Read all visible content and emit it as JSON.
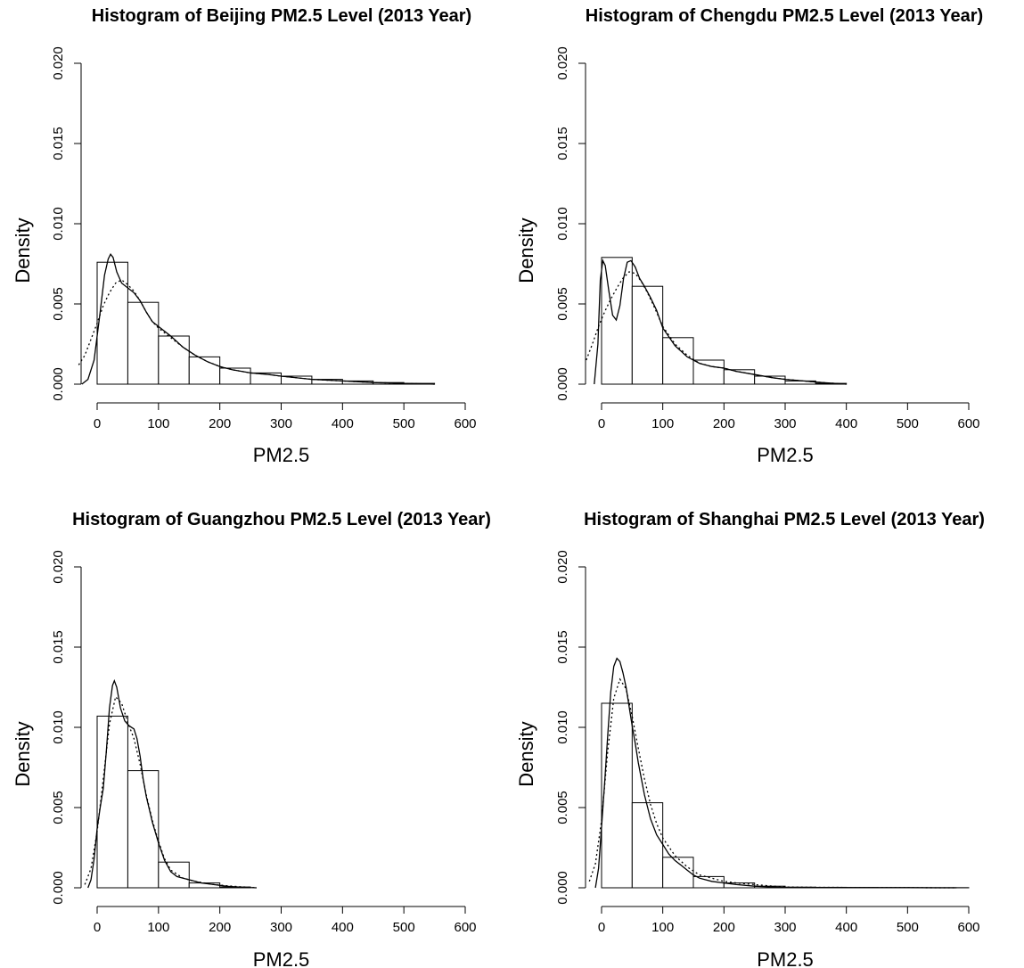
{
  "chart_data": [
    {
      "type": "bar",
      "title": "Histogram of Beijing PM2.5 Level (2013 Year)",
      "xlabel": "PM2.5",
      "ylabel": "Density",
      "xlim": [
        0,
        600
      ],
      "ylim": [
        0,
        0.02
      ],
      "x_ticks": [
        0,
        100,
        200,
        300,
        400,
        500,
        600
      ],
      "y_ticks": [
        0,
        0.005,
        0.01,
        0.015,
        0.02
      ],
      "x_tick_labels": [
        "0",
        "100",
        "200",
        "300",
        "400",
        "500",
        "600"
      ],
      "y_tick_labels": [
        "0.000",
        "0.005",
        "0.010",
        "0.015",
        "0.020"
      ],
      "bin_edges": [
        0,
        50,
        100,
        150,
        200,
        250,
        300,
        350,
        400,
        450,
        500,
        550
      ],
      "values": [
        0.0076,
        0.0051,
        0.003,
        0.0017,
        0.001,
        0.0007,
        0.0005,
        0.0003,
        0.0002,
        0.0001,
        5e-05
      ],
      "series": [
        {
          "style": "solid",
          "x": [
            -25,
            -15,
            -5,
            5,
            12,
            18,
            22,
            26,
            32,
            40,
            50,
            60,
            70,
            80,
            90,
            100,
            120,
            140,
            160,
            180,
            200,
            220,
            250,
            280,
            300,
            350,
            400,
            450,
            500,
            550
          ],
          "y": [
            0,
            0.0003,
            0.0015,
            0.0045,
            0.0068,
            0.0078,
            0.0081,
            0.0079,
            0.007,
            0.0063,
            0.006,
            0.0057,
            0.0052,
            0.0045,
            0.0039,
            0.0036,
            0.003,
            0.0023,
            0.0018,
            0.0014,
            0.0011,
            0.0009,
            0.0007,
            0.0006,
            0.0005,
            0.0003,
            0.0002,
            0.0001,
            5e-05,
            0
          ]
        },
        {
          "style": "dotted",
          "x": [
            -30,
            -20,
            -10,
            0,
            10,
            20,
            30,
            40,
            50,
            60,
            70,
            80,
            90,
            100,
            120,
            140,
            160,
            180,
            200,
            220,
            250,
            280,
            300,
            350,
            400,
            450,
            500,
            550
          ],
          "y": [
            0.0012,
            0.0018,
            0.0028,
            0.0038,
            0.0049,
            0.0057,
            0.0063,
            0.0065,
            0.0062,
            0.0058,
            0.0052,
            0.0045,
            0.0039,
            0.0035,
            0.0029,
            0.0023,
            0.0018,
            0.0014,
            0.0011,
            0.0009,
            0.0007,
            0.0006,
            0.0005,
            0.0003,
            0.0002,
            0.0001,
            5e-05,
            0
          ]
        }
      ]
    },
    {
      "type": "bar",
      "title": "Histogram of Chengdu PM2.5 Level (2013 Year)",
      "xlabel": "PM2.5",
      "ylabel": "Density",
      "xlim": [
        0,
        600
      ],
      "ylim": [
        0,
        0.02
      ],
      "x_ticks": [
        0,
        100,
        200,
        300,
        400,
        500,
        600
      ],
      "y_ticks": [
        0,
        0.005,
        0.01,
        0.015,
        0.02
      ],
      "x_tick_labels": [
        "0",
        "100",
        "200",
        "300",
        "400",
        "500",
        "600"
      ],
      "y_tick_labels": [
        "0.000",
        "0.005",
        "0.010",
        "0.015",
        "0.020"
      ],
      "bin_edges": [
        0,
        50,
        100,
        150,
        200,
        250,
        300,
        350,
        400
      ],
      "values": [
        0.0079,
        0.0061,
        0.0029,
        0.0015,
        0.0009,
        0.0005,
        0.0002,
        5e-05
      ],
      "series": [
        {
          "style": "solid",
          "x": [
            -12,
            -6,
            -2,
            2,
            6,
            12,
            18,
            24,
            30,
            36,
            42,
            48,
            55,
            62,
            70,
            80,
            90,
            100,
            120,
            140,
            160,
            180,
            200,
            220,
            250,
            280,
            300,
            330,
            360,
            400
          ],
          "y": [
            0,
            0.0025,
            0.0065,
            0.0077,
            0.0074,
            0.0058,
            0.0043,
            0.004,
            0.0049,
            0.0066,
            0.0076,
            0.0077,
            0.0073,
            0.0066,
            0.0061,
            0.0054,
            0.0046,
            0.0035,
            0.0024,
            0.0017,
            0.0013,
            0.0011,
            0.001,
            0.0008,
            0.0006,
            0.0004,
            0.0003,
            0.0002,
            0.0001,
            0
          ]
        },
        {
          "style": "dotted",
          "x": [
            -25,
            -15,
            -5,
            5,
            15,
            25,
            35,
            45,
            55,
            65,
            75,
            85,
            100,
            120,
            140,
            160,
            180,
            200,
            220,
            250,
            280,
            300,
            330,
            360,
            400
          ],
          "y": [
            0.0015,
            0.0025,
            0.0036,
            0.0045,
            0.0053,
            0.006,
            0.0066,
            0.007,
            0.0069,
            0.0064,
            0.0057,
            0.0049,
            0.0036,
            0.0025,
            0.0018,
            0.0013,
            0.0011,
            0.001,
            0.0008,
            0.0006,
            0.0004,
            0.0003,
            0.0002,
            0.0001,
            0
          ]
        }
      ]
    },
    {
      "type": "bar",
      "title": "Histogram of Guangzhou PM2.5 Level (2013 Year)",
      "xlabel": "PM2.5",
      "ylabel": "Density",
      "xlim": [
        0,
        600
      ],
      "ylim": [
        0,
        0.02
      ],
      "x_ticks": [
        0,
        100,
        200,
        300,
        400,
        500,
        600
      ],
      "y_ticks": [
        0,
        0.005,
        0.01,
        0.015,
        0.02
      ],
      "x_tick_labels": [
        "0",
        "100",
        "200",
        "300",
        "400",
        "500",
        "600"
      ],
      "y_tick_labels": [
        "0.000",
        "0.005",
        "0.010",
        "0.015",
        "0.020"
      ],
      "bin_edges": [
        0,
        50,
        100,
        150,
        200,
        250
      ],
      "values": [
        0.0107,
        0.0073,
        0.0016,
        0.0003,
        5e-05
      ],
      "series": [
        {
          "style": "solid",
          "x": [
            -15,
            -10,
            -5,
            0,
            5,
            10,
            15,
            20,
            25,
            28,
            32,
            38,
            45,
            52,
            60,
            65,
            70,
            75,
            80,
            90,
            100,
            110,
            120,
            130,
            140,
            150,
            170,
            190,
            210,
            240,
            260
          ],
          "y": [
            0,
            0.0005,
            0.0018,
            0.0037,
            0.005,
            0.0062,
            0.0085,
            0.0112,
            0.0126,
            0.0129,
            0.0125,
            0.0112,
            0.0104,
            0.0101,
            0.0099,
            0.0093,
            0.0082,
            0.0068,
            0.0057,
            0.0041,
            0.0028,
            0.0017,
            0.001,
            0.0007,
            0.0006,
            0.0005,
            0.0003,
            0.0002,
            0.0001,
            3e-05,
            0
          ]
        },
        {
          "style": "dotted",
          "x": [
            -20,
            -10,
            0,
            10,
            20,
            30,
            40,
            50,
            60,
            70,
            80,
            90,
            100,
            110,
            120,
            140,
            160,
            190,
            220,
            260
          ],
          "y": [
            0.0002,
            0.0012,
            0.0035,
            0.0068,
            0.0102,
            0.0119,
            0.0115,
            0.0103,
            0.0093,
            0.0077,
            0.0058,
            0.0042,
            0.0029,
            0.0018,
            0.0011,
            0.0006,
            0.0004,
            0.0002,
            0.0001,
            0
          ]
        }
      ]
    },
    {
      "type": "bar",
      "title": "Histogram of Shanghai PM2.5 Level (2013 Year)",
      "xlabel": "PM2.5",
      "ylabel": "Density",
      "xlim": [
        0,
        600
      ],
      "ylim": [
        0,
        0.02
      ],
      "x_ticks": [
        0,
        100,
        200,
        300,
        400,
        500,
        600
      ],
      "y_ticks": [
        0,
        0.005,
        0.01,
        0.015,
        0.02
      ],
      "x_tick_labels": [
        "0",
        "100",
        "200",
        "300",
        "400",
        "500",
        "600"
      ],
      "y_tick_labels": [
        "0.000",
        "0.005",
        "0.010",
        "0.015",
        "0.020"
      ],
      "bin_edges": [
        0,
        50,
        100,
        150,
        200,
        250,
        300,
        350,
        400,
        450,
        500,
        550,
        600
      ],
      "values": [
        0.0115,
        0.0053,
        0.0019,
        0.0007,
        0.0003,
        0.0001,
        4e-05,
        3e-05,
        2e-05,
        1e-05,
        1e-05,
        1e-05
      ],
      "series": [
        {
          "style": "solid",
          "x": [
            -10,
            -5,
            0,
            5,
            10,
            15,
            20,
            25,
            30,
            35,
            40,
            45,
            50,
            55,
            60,
            70,
            80,
            90,
            100,
            110,
            120,
            130,
            140,
            150,
            160,
            180,
            200,
            220,
            250,
            280,
            300,
            350,
            400,
            450,
            500,
            550,
            580
          ],
          "y": [
            0,
            0.0012,
            0.0038,
            0.0065,
            0.0095,
            0.0122,
            0.0138,
            0.0143,
            0.0141,
            0.0134,
            0.0125,
            0.0113,
            0.0101,
            0.009,
            0.0078,
            0.0058,
            0.0043,
            0.0033,
            0.0027,
            0.0021,
            0.0017,
            0.0014,
            0.0011,
            0.0008,
            0.0006,
            0.0004,
            0.0003,
            0.0002,
            0.0001,
            5e-05,
            3e-05,
            2e-05,
            1e-05,
            1e-05,
            1e-05,
            0,
            0
          ]
        },
        {
          "style": "dotted",
          "x": [
            -20,
            -10,
            0,
            10,
            20,
            30,
            40,
            50,
            60,
            70,
            80,
            90,
            100,
            120,
            140,
            160,
            180,
            200,
            220,
            250,
            280,
            300,
            350,
            400,
            450,
            500,
            550,
            580
          ],
          "y": [
            0.0004,
            0.0015,
            0.0042,
            0.0085,
            0.0118,
            0.013,
            0.0124,
            0.0107,
            0.0087,
            0.0068,
            0.0052,
            0.004,
            0.0031,
            0.002,
            0.0013,
            0.0008,
            0.0006,
            0.0004,
            0.0003,
            0.0002,
            0.0001,
            5e-05,
            3e-05,
            2e-05,
            1e-05,
            1e-05,
            0,
            0
          ]
        }
      ]
    }
  ]
}
